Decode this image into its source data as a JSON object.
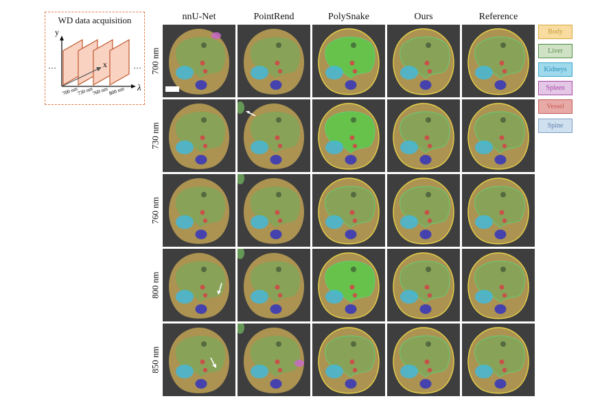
{
  "inset": {
    "title": "WD data acquisition",
    "axis_y": "y",
    "axis_x": "x",
    "axis_lambda": "λ",
    "ellipsis_left": "…",
    "ellipsis_right": "…",
    "wavelengths": [
      "700 nm",
      "730 nm",
      "760 nm",
      "800 nm"
    ]
  },
  "columns": [
    "nnU-Net",
    "PointRend",
    "PolySnake",
    "Ours",
    "Reference"
  ],
  "rows": [
    "700 nm",
    "730 nm",
    "760 nm",
    "800 nm",
    "850 nm"
  ],
  "legend": [
    {
      "label": "Body",
      "fill": "#f8dca0",
      "border": "#d6a840",
      "text": "#c89a3a"
    },
    {
      "label": "Liver",
      "fill": "#cfe3c4",
      "border": "#4e8a45",
      "text": "#5a8a50"
    },
    {
      "label": "Kidneys",
      "fill": "#9fd9ec",
      "border": "#3aa6cc",
      "text": "#2a8fb8"
    },
    {
      "label": "Spleen",
      "fill": "#e4c6e6",
      "border": "#a44aa6",
      "text": "#a44aa6"
    },
    {
      "label": "Vessel",
      "fill": "#e8aaa6",
      "border": "#c45a55",
      "text": "#c45a55"
    },
    {
      "label": "Spine",
      "fill": "#cfe0ee",
      "border": "#7f9cc2",
      "text": "#5f7fb0"
    }
  ],
  "colors": {
    "body": "#c9a64a",
    "liver": "#6fae5c",
    "liver_bright": "#4fd14a",
    "kidney": "#43b8d8",
    "spine": "#3a3ab8",
    "vessel": "#d04848",
    "spleen": "#c86ac8",
    "contour": "#e8d24a",
    "inset_accent": "#c0572c",
    "inset_fill": "#f9d2c2"
  }
}
